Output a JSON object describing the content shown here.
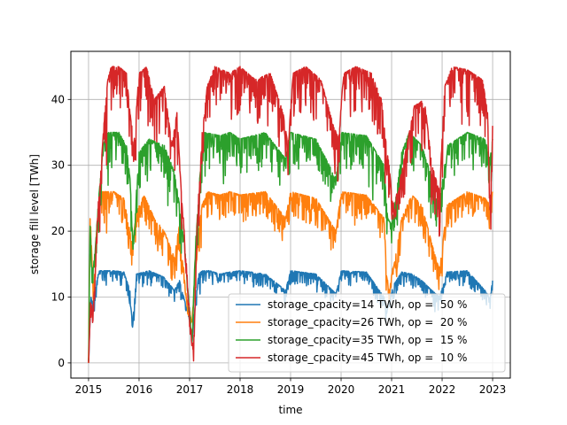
{
  "chart_data": {
    "type": "line",
    "xlabel": "time",
    "ylabel": "storage fill level [TWh]",
    "xlim": [
      2014.65,
      2023.35
    ],
    "ylim": [
      -2.3,
      47.3
    ],
    "x_ticks": [
      2015,
      2016,
      2017,
      2018,
      2019,
      2020,
      2021,
      2022,
      2023
    ],
    "x_tick_labels": [
      "2015",
      "2016",
      "2017",
      "2018",
      "2019",
      "2020",
      "2021",
      "2022",
      "2023"
    ],
    "y_ticks": [
      0,
      10,
      20,
      30,
      40
    ],
    "y_tick_labels": [
      "0",
      "10",
      "20",
      "30",
      "40"
    ],
    "grid": true,
    "legend_position": "lower-right",
    "series": [
      {
        "name": "storage_cpacity=14 TWh, op =  50 %",
        "color": "#1f77b4",
        "capacity": 14,
        "x": [
          2015.0,
          2015.05,
          2015.1,
          2015.15,
          2015.2,
          2015.3,
          2015.5,
          2015.7,
          2015.82,
          2015.87,
          2015.95,
          2016.2,
          2016.5,
          2016.7,
          2016.8,
          2016.9,
          2016.95,
          2017.05,
          2017.12,
          2017.18,
          2017.25,
          2017.4,
          2017.6,
          2017.8,
          2018.0,
          2018.5,
          2018.9,
          2019.0,
          2019.5,
          2019.9,
          2020.0,
          2020.5,
          2020.85,
          2020.9,
          2020.95,
          2021.05,
          2021.2,
          2021.4,
          2021.6,
          2021.8,
          2021.95,
          2022.1,
          2022.5,
          2022.85,
          2022.95,
          2023.0
        ],
        "y": [
          0,
          10.5,
          8.5,
          12,
          14,
          14,
          14,
          13.8,
          11,
          5.3,
          13.5,
          14,
          13,
          11,
          12.5,
          9.5,
          8.7,
          3.5,
          9.5,
          13.5,
          14,
          14,
          13.5,
          13.8,
          14,
          13.5,
          11,
          14,
          13.5,
          10.5,
          14,
          13.8,
          10,
          7.5,
          9.5,
          12,
          13.8,
          13.5,
          12.5,
          11,
          10,
          13.8,
          14,
          11,
          9.8,
          12.5
        ]
      },
      {
        "name": "storage_cpacity=26 TWh, op =  20 %",
        "color": "#ff7f0e",
        "capacity": 26,
        "x": [
          2015.0,
          2015.03,
          2015.07,
          2015.1,
          2015.14,
          2015.2,
          2015.27,
          2015.5,
          2015.7,
          2015.82,
          2015.87,
          2015.95,
          2016.1,
          2016.3,
          2016.5,
          2016.7,
          2016.8,
          2016.9,
          2016.95,
          2017.05,
          2017.12,
          2017.18,
          2017.25,
          2017.35,
          2017.6,
          2017.8,
          2018.0,
          2018.5,
          2018.9,
          2019.0,
          2019.5,
          2019.9,
          2020.0,
          2020.5,
          2020.85,
          2020.9,
          2020.95,
          2021.05,
          2021.2,
          2021.4,
          2021.6,
          2021.8,
          2021.95,
          2022.1,
          2022.5,
          2022.85,
          2022.95,
          2023.0
        ],
        "y": [
          0,
          23.5,
          15,
          9,
          18,
          24,
          26,
          26,
          25,
          20,
          18,
          23,
          25.5,
          22,
          20,
          16,
          21,
          12,
          8.5,
          6,
          14,
          20,
          24,
          26,
          25.5,
          26,
          25.5,
          26,
          22,
          26,
          25,
          20,
          26,
          25.5,
          22,
          14,
          10,
          15,
          22,
          25.5,
          24,
          18,
          14,
          24,
          26,
          25,
          24,
          26
        ]
      },
      {
        "name": "storage_cpacity=35 TWh, op =  15 %",
        "color": "#2ca02c",
        "capacity": 35,
        "x": [
          2015.0,
          2015.03,
          2015.07,
          2015.12,
          2015.2,
          2015.28,
          2015.33,
          2015.6,
          2015.75,
          2015.82,
          2015.88,
          2016.0,
          2016.2,
          2016.5,
          2016.7,
          2016.8,
          2016.9,
          2016.97,
          2017.05,
          2017.12,
          2017.2,
          2017.3,
          2017.6,
          2017.8,
          2018.0,
          2018.5,
          2018.9,
          2019.0,
          2019.5,
          2019.9,
          2020.0,
          2020.5,
          2020.85,
          2020.92,
          2021.0,
          2021.1,
          2021.2,
          2021.35,
          2021.6,
          2021.8,
          2021.95,
          2022.1,
          2022.5,
          2022.85,
          2022.95,
          2023.0
        ],
        "y": [
          0,
          21,
          12,
          16,
          25,
          32,
          35,
          35,
          33,
          28,
          18,
          32,
          34,
          33,
          29,
          24,
          18,
          10,
          3,
          18,
          28,
          35,
          34.5,
          35,
          34,
          35,
          31,
          35,
          34,
          28,
          35,
          34.5,
          30,
          22,
          21,
          26,
          32,
          35,
          33,
          28,
          24,
          33,
          35,
          34,
          31,
          34
        ]
      },
      {
        "name": "storage_cpacity=45 TWh, op =  10 %",
        "color": "#d62728",
        "capacity": 45,
        "x": [
          2015.0,
          2015.04,
          2015.08,
          2015.12,
          2015.18,
          2015.25,
          2015.32,
          2015.38,
          2015.45,
          2015.6,
          2015.75,
          2015.82,
          2015.9,
          2016.0,
          2016.15,
          2016.3,
          2016.5,
          2016.65,
          2016.75,
          2016.85,
          2016.93,
          2017.0,
          2017.08,
          2017.15,
          2017.25,
          2017.35,
          2017.5,
          2017.8,
          2018.0,
          2018.3,
          2018.6,
          2018.85,
          2018.95,
          2019.05,
          2019.3,
          2019.6,
          2019.85,
          2019.95,
          2020.05,
          2020.3,
          2020.6,
          2020.8,
          2020.88,
          2020.95,
          2021.05,
          2021.15,
          2021.3,
          2021.45,
          2021.65,
          2021.8,
          2021.95,
          2022.05,
          2022.2,
          2022.5,
          2022.8,
          2022.9,
          2022.95,
          2023.0
        ],
        "y": [
          0,
          8,
          7,
          11,
          22,
          30,
          38,
          43,
          45,
          45,
          44,
          38,
          34,
          44,
          45,
          40,
          42,
          33,
          38,
          24,
          15,
          6,
          1.5,
          20,
          35,
          42,
          45,
          44,
          45,
          43,
          44,
          38,
          33,
          44,
          45,
          43,
          36,
          34,
          44,
          45,
          44,
          40,
          34,
          30,
          22,
          27,
          33,
          39,
          40,
          30,
          26,
          42,
          45,
          44.5,
          43,
          38,
          22,
          36
        ]
      }
    ]
  }
}
